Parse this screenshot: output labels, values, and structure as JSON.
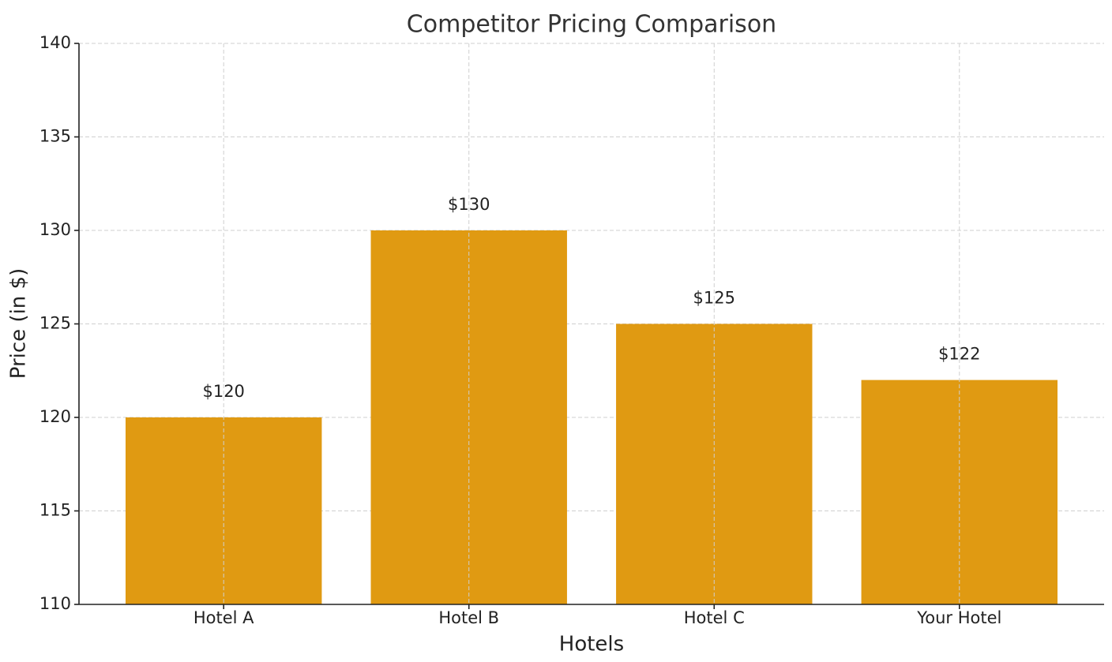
{
  "chart_data": {
    "type": "bar",
    "title": "Competitor Pricing Comparison",
    "xlabel": "Hotels",
    "ylabel": "Price (in $)",
    "categories": [
      "Hotel A",
      "Hotel B",
      "Hotel C",
      "Your Hotel"
    ],
    "values": [
      120,
      130,
      125,
      122
    ],
    "value_labels": [
      "$120",
      "$130",
      "$125",
      "$122"
    ],
    "color": "#e09a12",
    "ylim": [
      110,
      140
    ],
    "yticks": [
      110,
      115,
      120,
      125,
      130,
      135,
      140
    ],
    "grid": true
  }
}
